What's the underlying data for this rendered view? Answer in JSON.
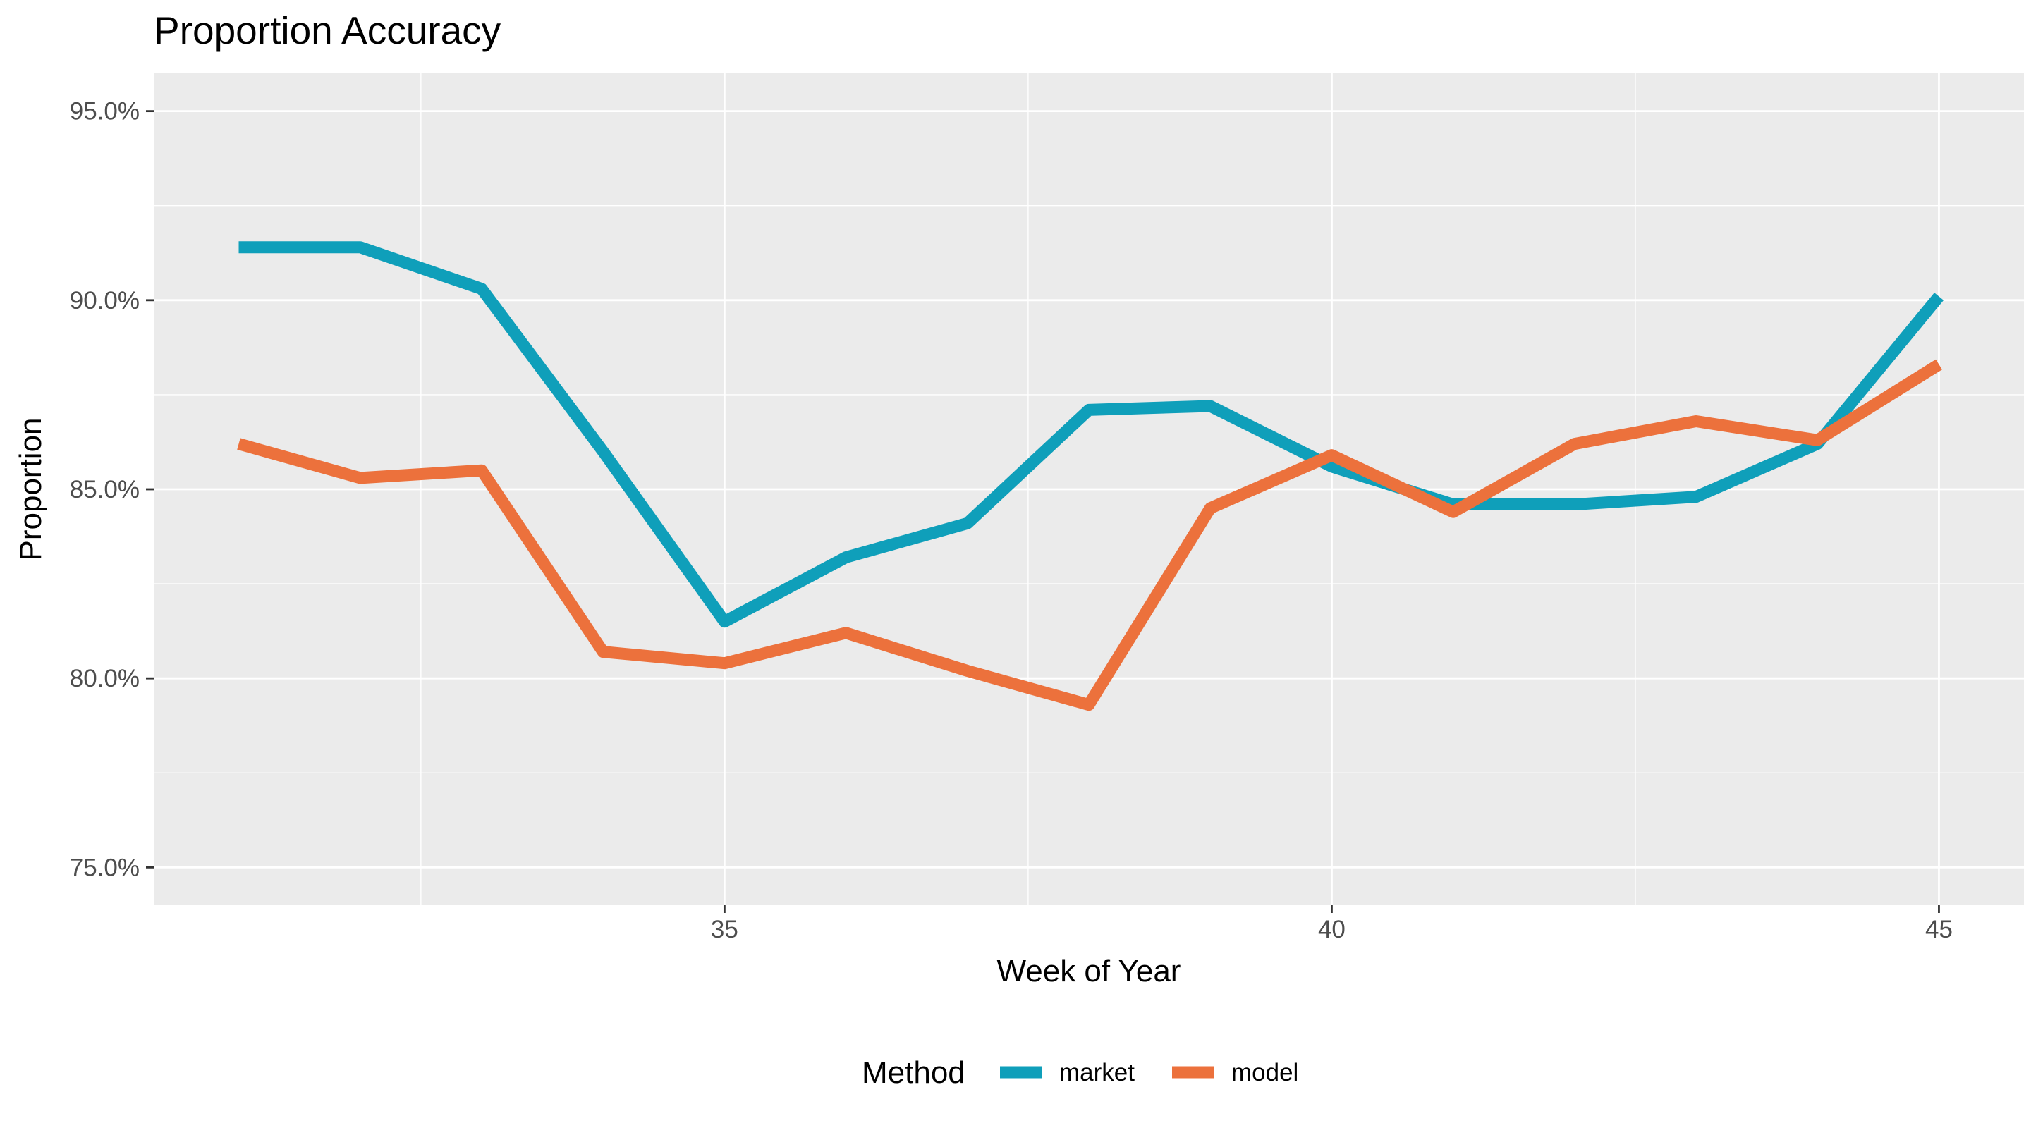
{
  "chart_data": {
    "type": "line",
    "title": "Proportion Accuracy",
    "xlabel": "Week of Year",
    "ylabel": "Proportion",
    "x": [
      31,
      32,
      33,
      34,
      35,
      36,
      37,
      38,
      39,
      40,
      41,
      42,
      43,
      44,
      45
    ],
    "xlim": [
      30.3,
      45.7
    ],
    "ylim": [
      74.0,
      96.0
    ],
    "x_ticks": [
      35,
      40,
      45
    ],
    "x_tick_labels": [
      "35",
      "40",
      "45"
    ],
    "y_ticks": [
      75,
      80,
      85,
      90,
      95
    ],
    "y_tick_labels": [
      "75.0%",
      "80.0%",
      "85.0%",
      "90.0%",
      "95.0%"
    ],
    "grid": true,
    "legend": {
      "title": "Method",
      "position": "bottom"
    },
    "series": [
      {
        "name": "market",
        "color": "#0f9fba",
        "values": [
          91.4,
          91.4,
          90.3,
          86.0,
          81.5,
          83.2,
          84.1,
          87.1,
          87.2,
          85.6,
          84.6,
          84.6,
          84.8,
          86.2,
          90.1
        ]
      },
      {
        "name": "model",
        "color": "#ec713c",
        "values": [
          86.2,
          85.3,
          85.5,
          80.7,
          80.4,
          81.2,
          80.2,
          79.3,
          84.5,
          85.9,
          84.4,
          86.2,
          86.8,
          86.3,
          88.3
        ]
      }
    ]
  }
}
